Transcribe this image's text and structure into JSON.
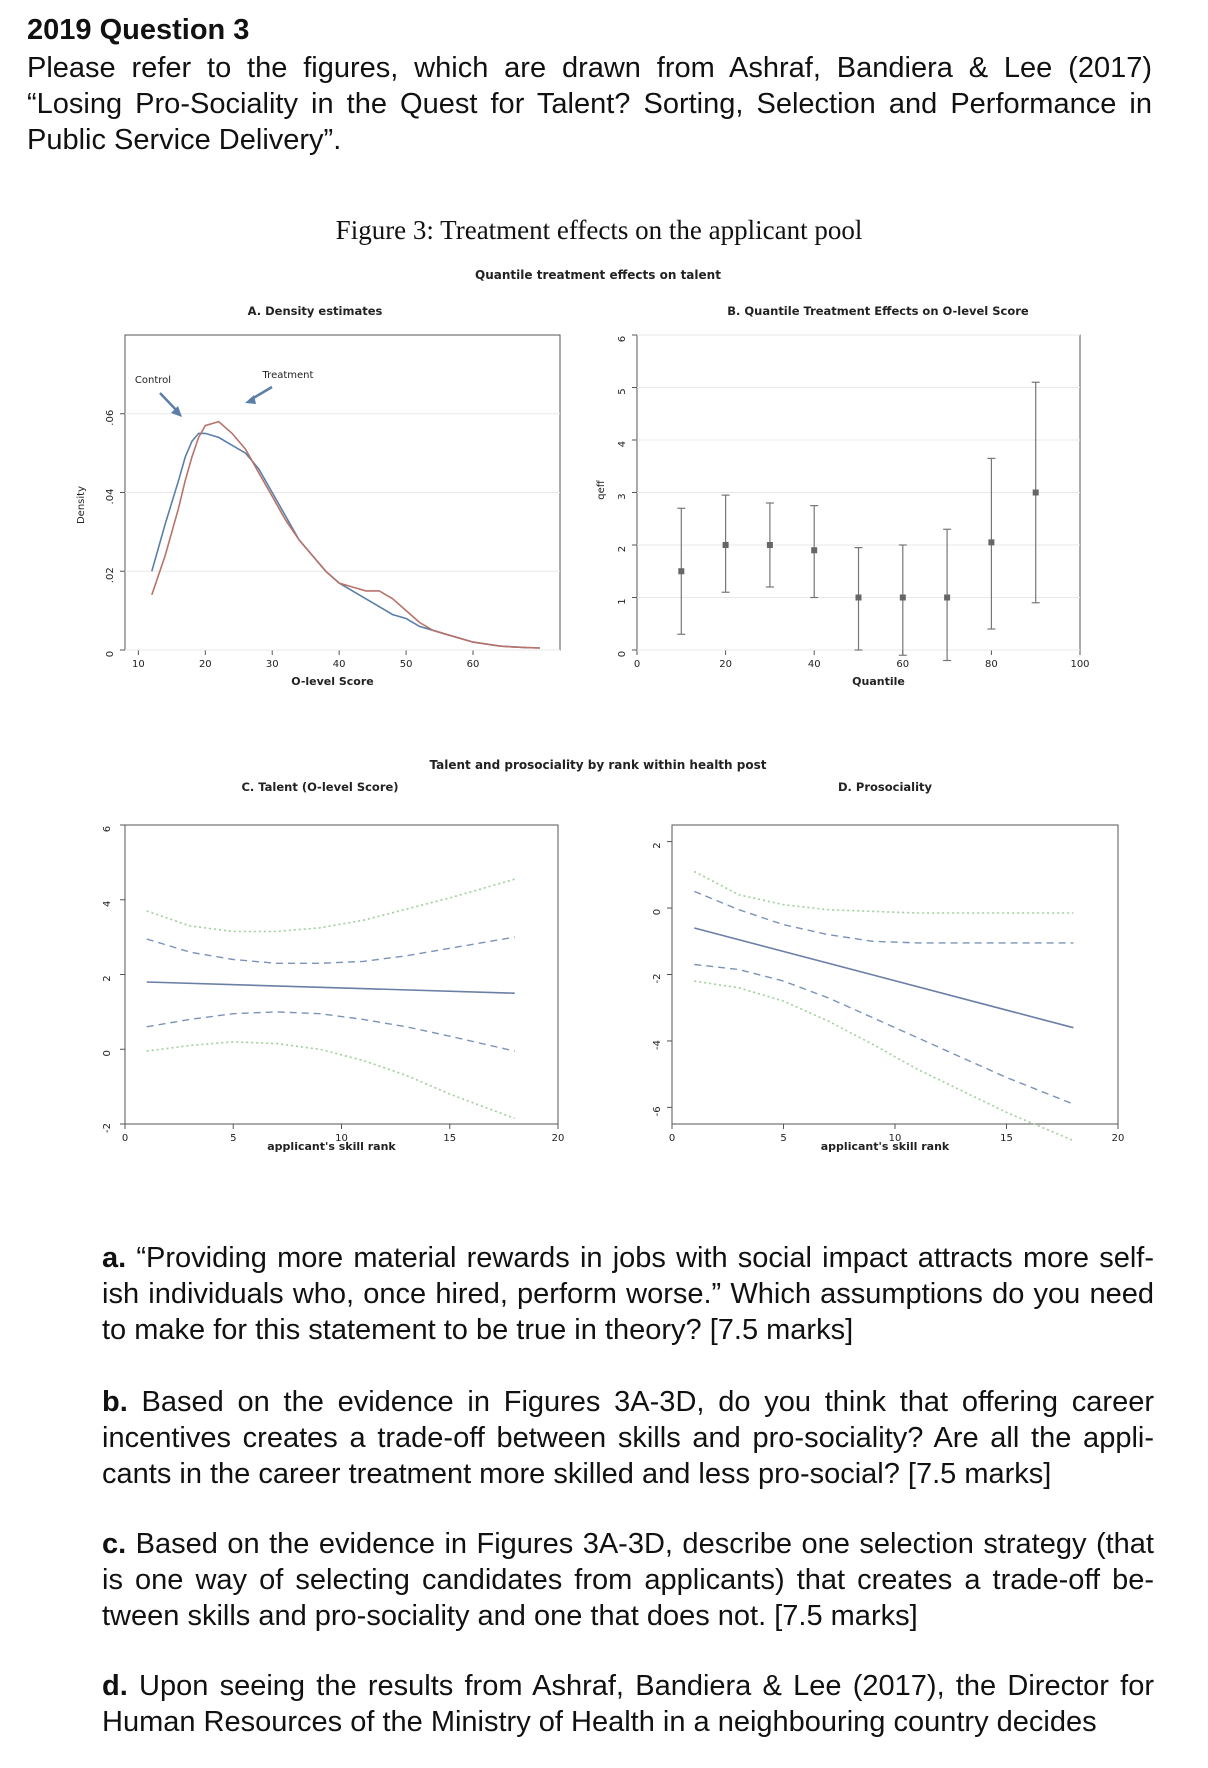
{
  "question": {
    "title": "2019 Question 3",
    "intro": "Please refer to the figures, which are drawn from Ashraf, Bandiera & Lee (2017) “Losing Pro-Sociality in the Quest for Talent? Sorting, Selection and Performance in Public Service Delivery”."
  },
  "figure": {
    "title": "Figure 3: Treatment effects on the applicant pool",
    "top_header": "Quantile treatment effects on talent",
    "bottom_header": "Talent and prosociality by rank within health post"
  },
  "chart_data": [
    {
      "type": "line",
      "title": "A. Density estimates",
      "xlabel": "O-level Score",
      "ylabel": "Density",
      "xlim": [
        8,
        73
      ],
      "ylim": [
        0,
        0.08
      ],
      "xticks": [
        "10",
        "20",
        "30",
        "40",
        "50",
        "60"
      ],
      "yticks": [
        "0",
        ".02",
        ".04",
        ".06"
      ],
      "annotations": [
        "Control",
        "Treatment"
      ],
      "series": [
        {
          "name": "Control",
          "color": "#5b7fa8",
          "x": [
            12,
            14,
            16,
            17,
            18,
            19,
            20,
            22,
            24,
            26,
            28,
            30,
            32,
            34,
            36,
            38,
            40,
            42,
            44,
            46,
            48,
            50,
            52,
            54,
            56,
            58,
            60,
            62,
            64,
            66,
            68,
            70
          ],
          "y": [
            0.02,
            0.032,
            0.043,
            0.049,
            0.053,
            0.055,
            0.055,
            0.054,
            0.052,
            0.05,
            0.046,
            0.04,
            0.034,
            0.028,
            0.024,
            0.02,
            0.017,
            0.015,
            0.013,
            0.011,
            0.009,
            0.008,
            0.006,
            0.005,
            0.004,
            0.003,
            0.002,
            0.0015,
            0.001,
            0.0008,
            0.0006,
            0.0005
          ]
        },
        {
          "name": "Treatment",
          "color": "#b8736a",
          "x": [
            12,
            14,
            16,
            17,
            18,
            19,
            20,
            22,
            24,
            26,
            28,
            30,
            32,
            34,
            36,
            38,
            40,
            42,
            44,
            46,
            48,
            50,
            52,
            54,
            56,
            58,
            60,
            62,
            64,
            66,
            68,
            70
          ],
          "y": [
            0.014,
            0.024,
            0.036,
            0.043,
            0.049,
            0.054,
            0.057,
            0.058,
            0.055,
            0.051,
            0.045,
            0.039,
            0.033,
            0.028,
            0.024,
            0.02,
            0.017,
            0.016,
            0.015,
            0.015,
            0.013,
            0.01,
            0.007,
            0.005,
            0.004,
            0.003,
            0.002,
            0.0015,
            0.001,
            0.0008,
            0.0006,
            0.0005
          ]
        }
      ]
    },
    {
      "type": "scatter",
      "title": "B. Quantile Treatment Effects on O-level Score",
      "xlabel": "Quantile",
      "ylabel": "qeff",
      "xlim": [
        0,
        100
      ],
      "ylim": [
        0,
        6
      ],
      "xticks": [
        "0",
        "20",
        "40",
        "60",
        "80",
        "100"
      ],
      "yticks": [
        "0",
        "1",
        "2",
        "3",
        "4",
        "5",
        "6"
      ],
      "points": [
        {
          "x": 10,
          "y": 1.5,
          "lo": 0.3,
          "hi": 2.7
        },
        {
          "x": 20,
          "y": 2.0,
          "lo": 1.1,
          "hi": 2.95
        },
        {
          "x": 30,
          "y": 2.0,
          "lo": 1.2,
          "hi": 2.8
        },
        {
          "x": 40,
          "y": 1.9,
          "lo": 1.0,
          "hi": 2.75
        },
        {
          "x": 50,
          "y": 1.0,
          "lo": 0.0,
          "hi": 1.95
        },
        {
          "x": 60,
          "y": 1.0,
          "lo": -0.1,
          "hi": 2.0
        },
        {
          "x": 70,
          "y": 1.0,
          "lo": -0.2,
          "hi": 2.3
        },
        {
          "x": 80,
          "y": 2.05,
          "lo": 0.4,
          "hi": 3.65
        },
        {
          "x": 90,
          "y": 3.0,
          "lo": 0.9,
          "hi": 5.1
        }
      ]
    },
    {
      "type": "line",
      "title": "C. Talent (O-level Score)",
      "xlabel": "applicant's skill rank",
      "xlim": [
        0,
        20
      ],
      "ylim": [
        -2,
        6
      ],
      "xticks": [
        "0",
        "5",
        "10",
        "15",
        "20"
      ],
      "yticks": [
        "-2",
        "0",
        "2",
        "4",
        "6"
      ],
      "series": [
        {
          "name": "fit",
          "style": "solid",
          "x": [
            1,
            18
          ],
          "y": [
            1.8,
            1.5
          ]
        },
        {
          "name": "ci",
          "style": "dashed",
          "x": [
            1,
            3,
            5,
            7,
            9,
            11,
            13,
            15,
            18
          ],
          "y": [
            2.95,
            2.6,
            2.4,
            2.3,
            2.3,
            2.35,
            2.5,
            2.7,
            3.0
          ]
        },
        {
          "name": "ci",
          "style": "dashed",
          "x": [
            1,
            3,
            5,
            7,
            9,
            11,
            13,
            15,
            18
          ],
          "y": [
            0.6,
            0.8,
            0.95,
            1.0,
            0.95,
            0.8,
            0.6,
            0.35,
            -0.05
          ]
        },
        {
          "name": "band",
          "style": "dotted",
          "x": [
            1,
            3,
            5,
            7,
            9,
            11,
            13,
            15,
            18
          ],
          "y": [
            3.7,
            3.3,
            3.15,
            3.15,
            3.25,
            3.45,
            3.75,
            4.05,
            4.55
          ]
        },
        {
          "name": "band",
          "style": "dotted",
          "x": [
            1,
            3,
            5,
            7,
            9,
            11,
            13,
            15,
            18
          ],
          "y": [
            -0.05,
            0.1,
            0.2,
            0.15,
            0.0,
            -0.3,
            -0.7,
            -1.2,
            -1.85
          ]
        }
      ]
    },
    {
      "type": "line",
      "title": "D. Prosociality",
      "xlabel": "applicant's skill rank",
      "xlim": [
        0,
        20
      ],
      "ylim": [
        -6.5,
        2.5
      ],
      "xticks": [
        "0",
        "5",
        "10",
        "15",
        "20"
      ],
      "yticks": [
        "-6",
        "-4",
        "-2",
        "0",
        "2"
      ],
      "series": [
        {
          "name": "fit",
          "style": "solid",
          "x": [
            1,
            18
          ],
          "y": [
            -0.6,
            -3.6
          ]
        },
        {
          "name": "ci",
          "style": "dashed",
          "x": [
            1,
            3,
            5,
            7,
            9,
            11,
            13,
            15,
            18
          ],
          "y": [
            0.5,
            -0.05,
            -0.5,
            -0.8,
            -1.0,
            -1.05,
            -1.05,
            -1.05,
            -1.05
          ]
        },
        {
          "name": "ci",
          "style": "dashed",
          "x": [
            1,
            3,
            5,
            7,
            9,
            11,
            13,
            15,
            18
          ],
          "y": [
            -1.7,
            -1.85,
            -2.2,
            -2.7,
            -3.3,
            -3.9,
            -4.5,
            -5.1,
            -5.9
          ]
        },
        {
          "name": "band",
          "style": "dotted",
          "x": [
            1,
            3,
            5,
            7,
            9,
            11,
            13,
            15,
            18
          ],
          "y": [
            1.1,
            0.4,
            0.1,
            -0.05,
            -0.1,
            -0.15,
            -0.15,
            -0.15,
            -0.15
          ]
        },
        {
          "name": "band",
          "style": "dotted",
          "x": [
            1,
            3,
            5,
            7,
            9,
            11,
            13,
            15,
            18
          ],
          "y": [
            -2.2,
            -2.4,
            -2.8,
            -3.4,
            -4.1,
            -4.85,
            -5.5,
            -6.15,
            -7.0
          ]
        }
      ]
    }
  ],
  "parts": [
    {
      "label": "a.",
      "text": "“Providing more material rewards in jobs with social impact attracts more self-ish individuals who, once hired, perform worse.” Which assumptions do you need to make for this statement to be true in theory? [7.5 marks]"
    },
    {
      "label": "b.",
      "text": "Based on the evidence in Figures 3A-3D, do you think that offering career incentives creates a trade-off between skills and pro-sociality? Are all the appli-cants in the career treatment more skilled and less pro-social? [7.5 marks]"
    },
    {
      "label": "c.",
      "text": "Based on the evidence in Figures 3A-3D, describe one selection strategy (that is one way of selecting candidates from applicants) that creates a trade-off be-tween skills and pro-sociality and one that does not. [7.5 marks]"
    },
    {
      "label": "d.",
      "text": "Upon seeing the results from Ashraf, Bandiera & Lee (2017), the Director for Human Resources of the Ministry of Health in a neighbouring country decides"
    }
  ]
}
